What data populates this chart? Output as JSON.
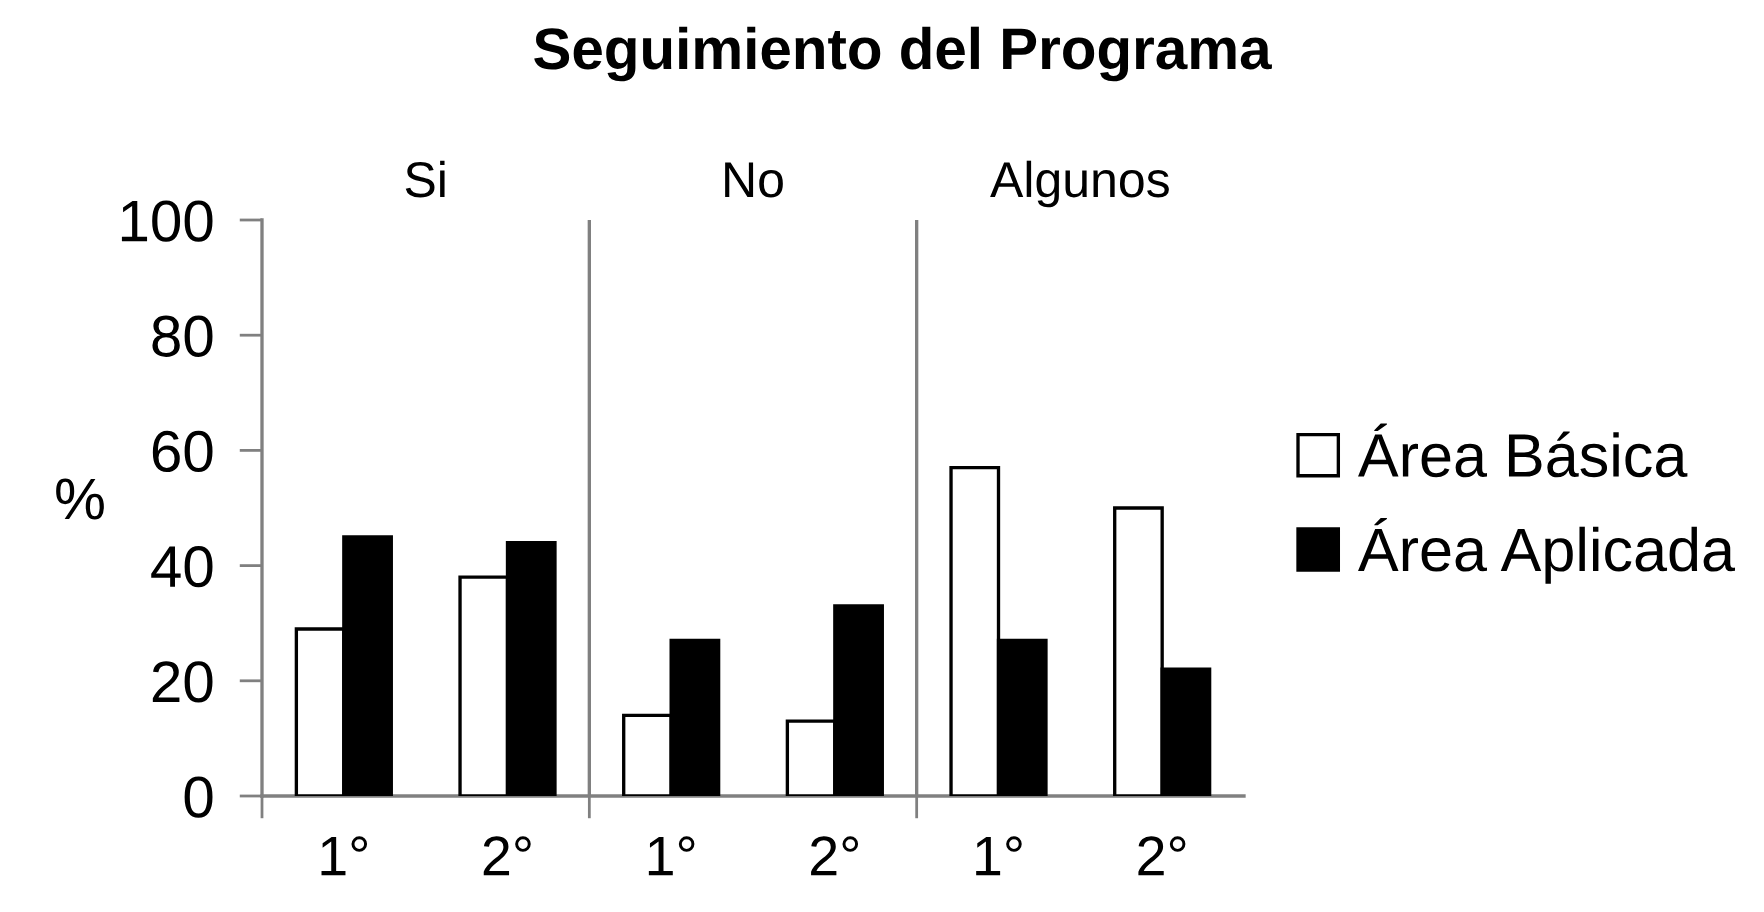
{
  "chart_data": {
    "type": "bar",
    "title": "Seguimiento del Programa",
    "ylabel": "%",
    "categories": [
      "1°",
      "2°",
      "1°",
      "2°",
      "1°",
      "2°"
    ],
    "series": [
      {
        "name": "Área Básica",
        "color": "#ffffff",
        "values": [
          29,
          38,
          14,
          13,
          57,
          50
        ]
      },
      {
        "name": "Área Aplicada",
        "color": "#000000",
        "values": [
          45,
          44,
          27,
          33,
          27,
          22
        ]
      }
    ],
    "annotations": [
      "Si",
      "No",
      "Algunos"
    ],
    "ylim": [
      0,
      100
    ],
    "yticks": [
      0,
      20,
      40,
      60,
      80,
      100
    ],
    "legend": "right"
  }
}
